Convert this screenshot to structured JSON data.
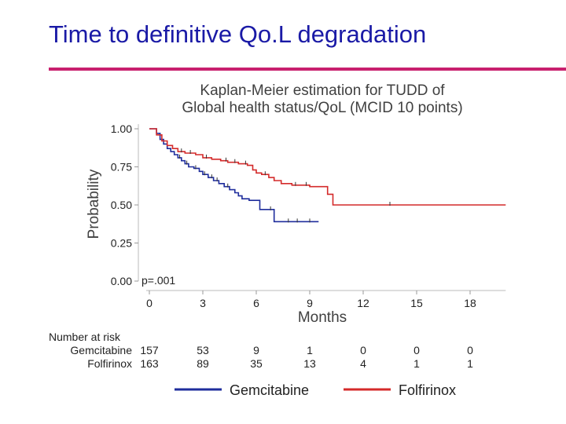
{
  "slide": {
    "title": "Time to definitive Qo.L degradation"
  },
  "chart_data": {
    "type": "line",
    "title": [
      "Kaplan-Meier estimation for TUDD of",
      "Global health status/QoL (MCID 10 points)"
    ],
    "xlabel": "Months",
    "ylabel": "Probability",
    "xlim": [
      0,
      20
    ],
    "ylim": [
      0,
      1
    ],
    "xticks": [
      0,
      3,
      6,
      9,
      12,
      15,
      18
    ],
    "yticks": [
      {
        "value": 0,
        "label": "0.00"
      },
      {
        "value": 0.25,
        "label": "0.25"
      },
      {
        "value": 0.5,
        "label": "0.50"
      },
      {
        "value": 0.75,
        "label": "0.75"
      },
      {
        "value": 1,
        "label": "1.00"
      }
    ],
    "annotation": "p=.001",
    "series": [
      {
        "name": "Gemcitabine",
        "color": "#1f2d9c",
        "x": [
          0,
          0.4,
          0.6,
          0.8,
          1.0,
          1.2,
          1.4,
          1.6,
          1.8,
          2.0,
          2.2,
          2.5,
          2.8,
          3.0,
          3.3,
          3.6,
          3.9,
          4.2,
          4.5,
          4.8,
          5.0,
          5.2,
          5.6,
          6.0,
          6.2,
          7.0,
          9.5
        ],
        "y": [
          1.0,
          0.97,
          0.93,
          0.9,
          0.87,
          0.85,
          0.83,
          0.81,
          0.79,
          0.77,
          0.75,
          0.74,
          0.72,
          0.7,
          0.68,
          0.66,
          0.64,
          0.62,
          0.6,
          0.58,
          0.56,
          0.54,
          0.53,
          0.53,
          0.47,
          0.39,
          0.39
        ],
        "censor_x": [
          1.7,
          2.1,
          2.6,
          3.1,
          3.5,
          3.8,
          4.4,
          6.8,
          7.8,
          8.3,
          9.0
        ]
      },
      {
        "name": "Folfirinox",
        "color": "#d42a2a",
        "x": [
          0,
          0.4,
          0.7,
          1.0,
          1.3,
          1.6,
          2.0,
          2.6,
          3.0,
          3.5,
          4.0,
          4.4,
          5.0,
          5.5,
          5.8,
          6.0,
          6.3,
          6.7,
          7.0,
          7.4,
          8.0,
          9.0,
          9.7,
          10.0,
          10.3,
          12.0,
          20.0
        ],
        "y": [
          1.0,
          0.96,
          0.92,
          0.89,
          0.87,
          0.85,
          0.84,
          0.83,
          0.81,
          0.8,
          0.79,
          0.78,
          0.77,
          0.76,
          0.73,
          0.71,
          0.7,
          0.68,
          0.66,
          0.64,
          0.63,
          0.62,
          0.62,
          0.57,
          0.5,
          0.5,
          0.5
        ],
        "censor_x": [
          1.8,
          2.3,
          3.2,
          4.3,
          4.8,
          5.4,
          6.5,
          8.2,
          8.8,
          13.5
        ]
      }
    ],
    "risk_table": {
      "header": "Number at risk",
      "rows": [
        {
          "label": "Gemcitabine",
          "values": [
            "157",
            "53",
            "9",
            "1",
            "0",
            "0",
            "0"
          ]
        },
        {
          "label": "Folfirinox",
          "values": [
            "163",
            "89",
            "35",
            "13",
            "4",
            "1",
            "1"
          ]
        }
      ]
    }
  }
}
